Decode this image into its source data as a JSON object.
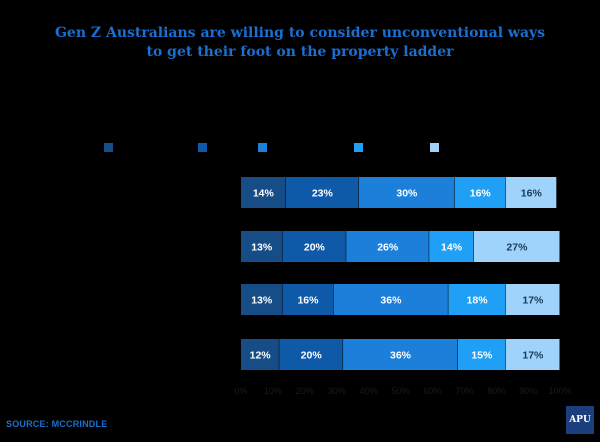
{
  "title_lines": [
    "Gen Z Australians are willing to consider unconventional ways",
    "to get their foot on the property ladder"
  ],
  "source": "SOURCE: MCCRINDLE",
  "logo": "APU",
  "colors": {
    "background": "#000000",
    "title": "#1a6fd0",
    "series": [
      "#174d86",
      "#0f5aa8",
      "#1c80db",
      "#1fa0f6",
      "#9fd3fb"
    ],
    "label_text": [
      "#ffffff",
      "#ffffff",
      "#ffffff",
      "#ffffff",
      "#1a3a5c"
    ]
  },
  "chart_data": {
    "type": "bar",
    "orientation": "horizontal",
    "stacked": true,
    "categories": [
      "",
      "",
      "",
      ""
    ],
    "series": [
      {
        "values": [
          14,
          13,
          13,
          12
        ]
      },
      {
        "values": [
          23,
          20,
          16,
          20
        ]
      },
      {
        "values": [
          30,
          26,
          36,
          36
        ]
      },
      {
        "values": [
          16,
          14,
          18,
          15
        ]
      },
      {
        "values": [
          16,
          27,
          17,
          17
        ]
      }
    ],
    "value_labels": [
      [
        "14%",
        "13%",
        "13%",
        "12%"
      ],
      [
        "23%",
        "20%",
        "16%",
        "20%"
      ],
      [
        "30%",
        "26%",
        "36%",
        "36%"
      ],
      [
        "16%",
        "14%",
        "18%",
        "15%"
      ],
      [
        "16%",
        "27%",
        "17%",
        "17%"
      ]
    ],
    "xlim": [
      0,
      100
    ],
    "x_ticks": [
      0,
      10,
      20,
      30,
      40,
      50,
      60,
      70,
      80,
      90,
      100
    ],
    "legend_position": "top",
    "grid": false
  }
}
